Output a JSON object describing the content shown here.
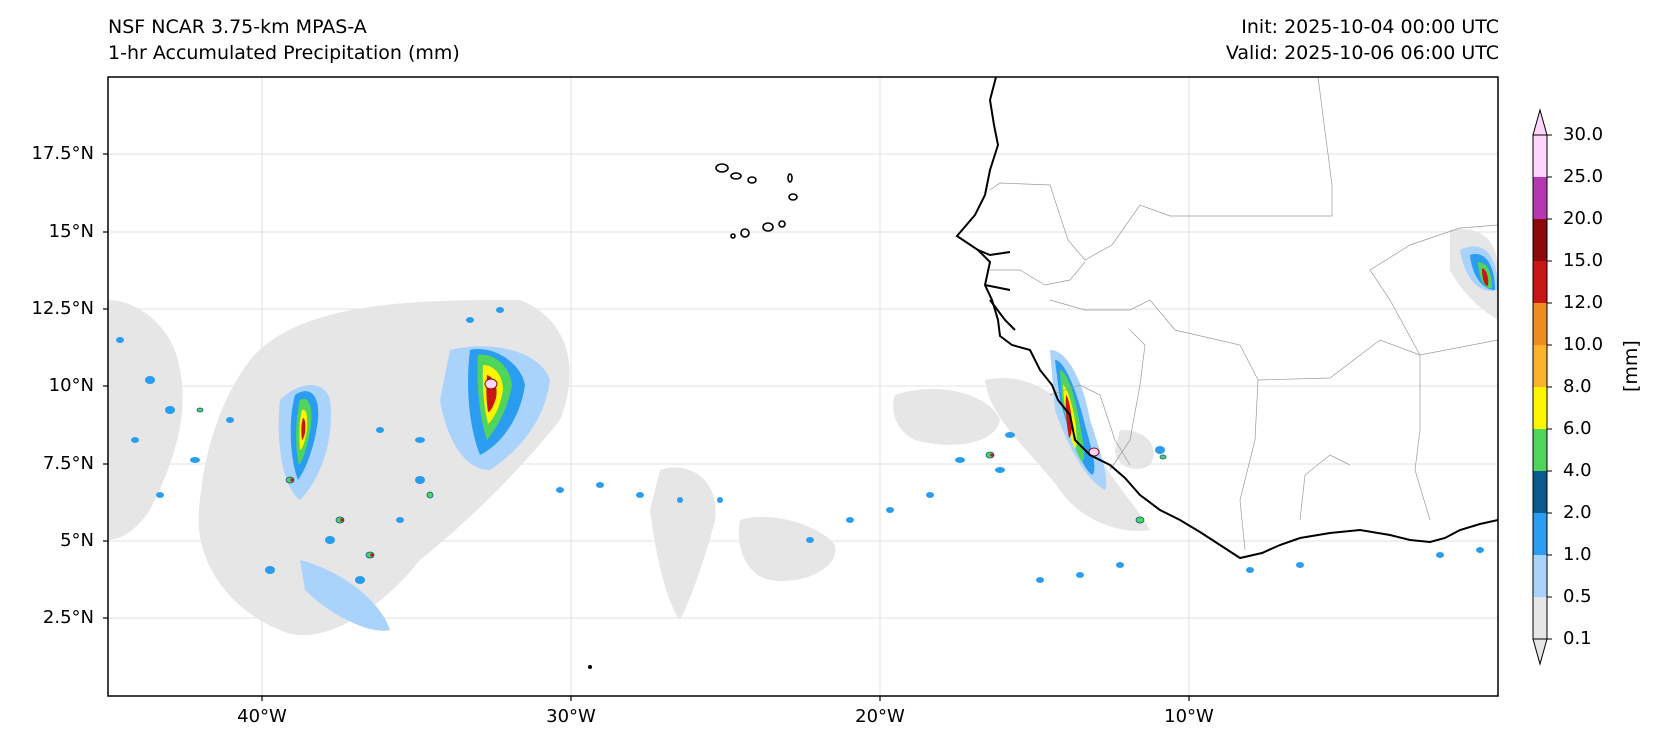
{
  "header": {
    "model_title": "NSF NCAR 3.75-km MPAS-A",
    "field_title": "1-hr Accumulated Precipitation (mm)",
    "init": "Init: 2025-10-04 00:00 UTC",
    "valid": "Valid: 2025-10-06 06:00 UTC"
  },
  "map": {
    "extent_lon": [
      -45,
      0
    ],
    "extent_lat": [
      0,
      20
    ],
    "lat_ticks": [
      "17.5°N",
      "15°N",
      "12.5°N",
      "10°N",
      "7.5°N",
      "5°N",
      "2.5°N"
    ],
    "lon_ticks": [
      "40°W",
      "30°W",
      "20°W",
      "10°W"
    ]
  },
  "colorbar": {
    "unit": "[mm]",
    "levels": [
      "0.1",
      "0.5",
      "1.0",
      "2.0",
      "4.0",
      "6.0",
      "8.0",
      "10.0",
      "12.0",
      "15.0",
      "20.0",
      "25.0",
      "30.0"
    ],
    "colors": [
      "#e6e6e6",
      "#a9d3fb",
      "#2a9df0",
      "#0a5a8f",
      "#4fd45c",
      "#fbf500",
      "#fbb32e",
      "#ec8e1f",
      "#c81616",
      "#8b0a0a",
      "#b637b2",
      "#ffd5fc"
    ]
  }
}
